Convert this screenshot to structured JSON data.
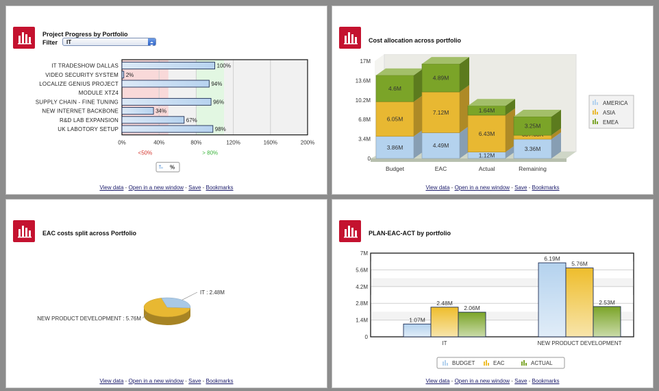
{
  "footer": {
    "view": "View data",
    "open": "Open in a new window",
    "save": "Save",
    "bookmarks": "Bookmarks",
    "sep": " - "
  },
  "panel1": {
    "title": "Project Progress by Portfolio",
    "filter_label": "Filter",
    "filter_value": "IT",
    "legend": "%",
    "low_label": "<50%",
    "high_label": "> 80%"
  },
  "panel2": {
    "title": "Cost allocation across portfolio"
  },
  "panel3": {
    "title": "EAC costs split across Portfolio"
  },
  "panel4": {
    "title": "PLAN-EAC-ACT by portfolio"
  },
  "chart_data": [
    {
      "type": "bar",
      "orientation": "horizontal",
      "title": "Project Progress by Portfolio",
      "categories": [
        "IT TRADESHOW DALLAS",
        "VIDEO SECURITY SYSTEM",
        "LOCALIZE GENIUS PROJECT",
        "MODULE XTZ4",
        "SUPPLY CHAIN - FINE TUNING",
        "NEW INTERNET BACKBONE",
        "R&D LAB EXPANSION",
        "UK LABOTORY SETUP"
      ],
      "values": [
        100,
        2,
        94,
        null,
        96,
        34,
        67,
        98
      ],
      "data_labels": [
        "100%",
        "2%",
        "94%",
        "",
        "96%",
        "34%",
        "67%",
        "98%"
      ],
      "x_ticks": [
        "0%",
        "40%",
        "80%",
        "120%",
        "160%",
        "200%"
      ],
      "xlim": [
        0,
        200
      ],
      "bands": [
        {
          "from": 0,
          "to": 50,
          "color": "#f9d9d9"
        },
        {
          "from": 80,
          "to": 110,
          "color": "#e2f7e2"
        }
      ],
      "series": [
        {
          "name": "%",
          "values": [
            100,
            2,
            94,
            null,
            96,
            34,
            67,
            98
          ]
        }
      ]
    },
    {
      "type": "bar",
      "stacked": true,
      "title": "Cost allocation across portfolio",
      "categories": [
        "Budget",
        "EAC",
        "Actual",
        "Remaining"
      ],
      "y_ticks": [
        "0",
        "3.4M",
        "6.8M",
        "10.2M",
        "13.6M",
        "17M"
      ],
      "ylim": [
        0,
        17
      ],
      "series": [
        {
          "name": "AMERICA",
          "color": "#b4d2ee",
          "values": [
            3.86,
            4.49,
            1.12,
            3.36
          ],
          "labels": [
            "3.86M",
            "4.49M",
            "1.12M",
            "3.36M"
          ]
        },
        {
          "name": "ASIA",
          "color": "#e8b832",
          "values": [
            6.05,
            7.12,
            6.43,
            0.69
          ],
          "labels": [
            "6.05M",
            "7.12M",
            "6.43M",
            "687.68K"
          ]
        },
        {
          "name": "EMEA",
          "color": "#7ba428",
          "values": [
            4.6,
            4.89,
            1.64,
            3.25
          ],
          "labels": [
            "4.6M",
            "4.89M",
            "1.64M",
            "3.25M"
          ]
        }
      ]
    },
    {
      "type": "pie",
      "title": "EAC costs split across Portfolio",
      "slices": [
        {
          "name": "IT",
          "value": 2.48,
          "label": "IT : 2.48M",
          "color": "#a9c9e6"
        },
        {
          "name": "NEW PRODUCT DEVELOPMENT",
          "value": 5.76,
          "label": "NEW PRODUCT DEVELOPMENT : 5.76M",
          "color": "#e8b832"
        }
      ]
    },
    {
      "type": "bar",
      "title": "PLAN-EAC-ACT by portfolio",
      "categories": [
        "IT",
        "NEW PRODUCT DEVELOPMENT"
      ],
      "y_ticks": [
        "0",
        "1.4M",
        "2.8M",
        "4.2M",
        "5.6M",
        "7M"
      ],
      "ylim": [
        0,
        7
      ],
      "series": [
        {
          "name": "BUDGET",
          "color": "#b4d2ee",
          "values": [
            1.07,
            6.19
          ],
          "labels": [
            "1.07M",
            "6.19M"
          ]
        },
        {
          "name": "EAC",
          "color": "#eebd2c",
          "values": [
            2.48,
            5.76
          ],
          "labels": [
            "2.48M",
            "5.76M"
          ]
        },
        {
          "name": "ACTUAL",
          "color": "#7ba428",
          "values": [
            2.06,
            2.53
          ],
          "labels": [
            "2.06M",
            "2.53M"
          ]
        }
      ]
    }
  ]
}
